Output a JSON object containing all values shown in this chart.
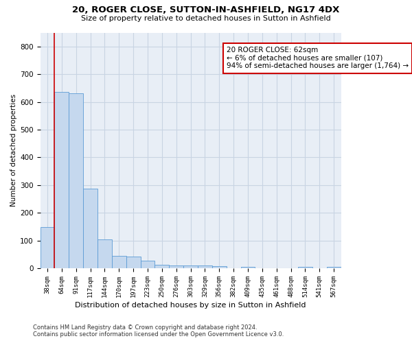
{
  "title": "20, ROGER CLOSE, SUTTON-IN-ASHFIELD, NG17 4DX",
  "subtitle": "Size of property relative to detached houses in Sutton in Ashfield",
  "xlabel": "Distribution of detached houses by size in Sutton in Ashfield",
  "ylabel": "Number of detached properties",
  "footnote": "Contains HM Land Registry data © Crown copyright and database right 2024.\nContains public sector information licensed under the Open Government Licence v3.0.",
  "categories": [
    "38sqm",
    "64sqm",
    "91sqm",
    "117sqm",
    "144sqm",
    "170sqm",
    "197sqm",
    "223sqm",
    "250sqm",
    "276sqm",
    "303sqm",
    "329sqm",
    "356sqm",
    "382sqm",
    "409sqm",
    "435sqm",
    "461sqm",
    "488sqm",
    "514sqm",
    "541sqm",
    "567sqm"
  ],
  "values": [
    148,
    635,
    630,
    288,
    103,
    44,
    43,
    27,
    12,
    11,
    10,
    10,
    8,
    0,
    5,
    0,
    0,
    0,
    5,
    0,
    5
  ],
  "bar_color": "#c5d8ee",
  "bar_edge_color": "#5b9bd5",
  "annotation_line1": "20 ROGER CLOSE: 62sqm",
  "annotation_line2": "← 6% of detached houses are smaller (107)",
  "annotation_line3": "94% of semi-detached houses are larger (1,764) →",
  "annotation_box_color": "#ffffff",
  "annotation_box_edge_color": "#cc0000",
  "vline_color": "#cc0000",
  "ylim": [
    0,
    850
  ],
  "yticks": [
    0,
    100,
    200,
    300,
    400,
    500,
    600,
    700,
    800
  ],
  "grid_color": "#c8d4e3",
  "bg_color": "#e8eef6"
}
